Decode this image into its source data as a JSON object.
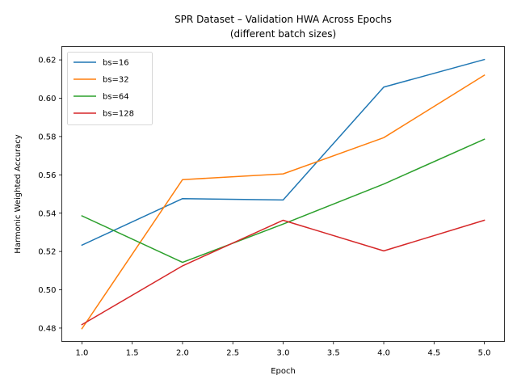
{
  "chart_data": {
    "type": "line",
    "title": "SPR Dataset – Validation HWA Across Epochs",
    "subtitle": "(different batch sizes)",
    "xlabel": "Epoch",
    "ylabel": "Harmonic Weighted Accuracy",
    "x": [
      1,
      2,
      3,
      4,
      5
    ],
    "xlim": [
      0.8,
      5.2
    ],
    "ylim": [
      0.473,
      0.627
    ],
    "xticks": [
      "1.0",
      "1.5",
      "2.0",
      "2.5",
      "3.0",
      "3.5",
      "4.0",
      "4.5",
      "5.0"
    ],
    "yticks": [
      "0.48",
      "0.50",
      "0.52",
      "0.54",
      "0.56",
      "0.58",
      "0.60",
      "0.62"
    ],
    "grid": false,
    "legend_position": "top-left",
    "series": [
      {
        "name": "bs=16",
        "color": "#1f77b4",
        "values": [
          0.5233,
          0.5476,
          0.5469,
          0.6058,
          0.6202
        ]
      },
      {
        "name": "bs=32",
        "color": "#ff7f0e",
        "values": [
          0.4797,
          0.5575,
          0.5605,
          0.5794,
          0.612
        ]
      },
      {
        "name": "bs=64",
        "color": "#2ca02c",
        "values": [
          0.5386,
          0.5143,
          0.5343,
          0.5552,
          0.5786
        ]
      },
      {
        "name": "bs=128",
        "color": "#d62728",
        "values": [
          0.4818,
          0.5125,
          0.5363,
          0.5203,
          0.5363
        ]
      }
    ]
  }
}
